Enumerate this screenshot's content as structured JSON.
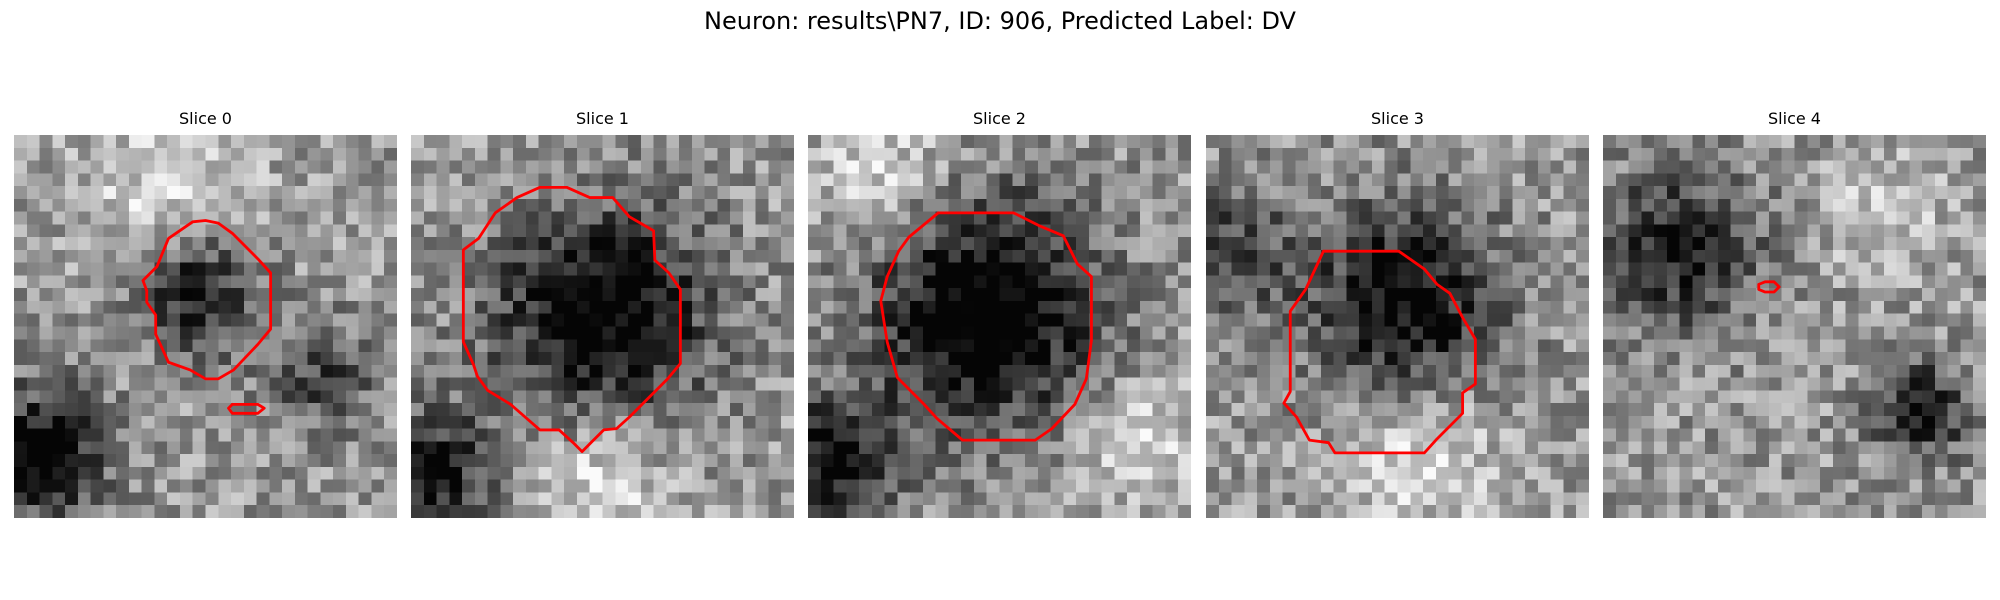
{
  "figure": {
    "title": "Neuron: results\\PN7, ID: 906, Predicted Label: DV"
  },
  "panels": [
    {
      "title": "Slice 0",
      "dark_blobs": [
        {
          "cx": 14.3,
          "cy": 12.3,
          "r": 4.3,
          "strength": 0.55
        },
        {
          "cx": 2.0,
          "cy": 25.0,
          "r": 4.8,
          "strength": 0.65
        },
        {
          "cx": 24.0,
          "cy": 19.0,
          "r": 4.0,
          "strength": 0.35
        }
      ],
      "bright_blobs": [
        {
          "cx": 12.0,
          "cy": 4.0,
          "r": 6.0,
          "strength": 0.25
        }
      ],
      "contours": [
        [
          [
            12.1,
            8.1
          ],
          [
            14.0,
            6.8
          ],
          [
            15.0,
            6.7
          ],
          [
            16.0,
            6.9
          ],
          [
            17.1,
            7.7
          ],
          [
            19.1,
            9.7
          ],
          [
            20.1,
            10.8
          ],
          [
            20.1,
            15.2
          ],
          [
            19.1,
            16.4
          ],
          [
            17.2,
            18.4
          ],
          [
            16.0,
            19.1
          ],
          [
            15.0,
            19.1
          ],
          [
            13.8,
            18.4
          ],
          [
            12.1,
            17.8
          ],
          [
            11.1,
            15.6
          ],
          [
            11.1,
            14.1
          ],
          [
            10.4,
            13.1
          ],
          [
            10.4,
            12.2
          ],
          [
            10.1,
            11.4
          ],
          [
            11.2,
            10.3
          ],
          [
            12.1,
            8.1
          ]
        ],
        [
          [
            17.1,
            21.1
          ],
          [
            19.1,
            21.1
          ],
          [
            19.6,
            21.4
          ],
          [
            19.1,
            21.8
          ],
          [
            17.1,
            21.8
          ],
          [
            16.8,
            21.4
          ],
          [
            17.1,
            21.1
          ]
        ]
      ]
    },
    {
      "title": "Slice 1",
      "dark_blobs": [
        {
          "cx": 15.0,
          "cy": 14.0,
          "r": 7.8,
          "strength": 0.7
        },
        {
          "cx": 1.0,
          "cy": 26.5,
          "r": 5.0,
          "strength": 0.55
        }
      ],
      "bright_blobs": [
        {
          "cx": 15.0,
          "cy": 27.0,
          "r": 5.0,
          "strength": 0.3
        }
      ],
      "contours": [
        [
          [
            10.1,
            4.1
          ],
          [
            12.2,
            4.1
          ],
          [
            14.0,
            4.9
          ],
          [
            15.8,
            4.9
          ],
          [
            17.1,
            6.4
          ],
          [
            19.0,
            7.5
          ],
          [
            19.1,
            9.8
          ],
          [
            20.2,
            10.8
          ],
          [
            21.1,
            12.1
          ],
          [
            21.1,
            17.9
          ],
          [
            20.1,
            19.1
          ],
          [
            19.1,
            20.1
          ],
          [
            18.1,
            21.1
          ],
          [
            17.1,
            22.1
          ],
          [
            16.1,
            23.0
          ],
          [
            15.1,
            23.1
          ],
          [
            14.1,
            24.1
          ],
          [
            13.4,
            24.8
          ],
          [
            12.7,
            24.1
          ],
          [
            11.6,
            23.1
          ],
          [
            10.1,
            23.1
          ],
          [
            7.8,
            21.1
          ],
          [
            6.0,
            20.0
          ],
          [
            5.2,
            18.9
          ],
          [
            4.9,
            18.0
          ],
          [
            4.1,
            16.2
          ],
          [
            4.1,
            9.0
          ],
          [
            5.3,
            8.1
          ],
          [
            6.6,
            6.1
          ],
          [
            8.3,
            4.9
          ],
          [
            10.1,
            4.1
          ]
        ]
      ]
    },
    {
      "title": "Slice 2",
      "dark_blobs": [
        {
          "cx": 14.0,
          "cy": 14.0,
          "r": 8.4,
          "strength": 0.75
        },
        {
          "cx": 2.0,
          "cy": 25.5,
          "r": 4.5,
          "strength": 0.6
        }
      ],
      "bright_blobs": [
        {
          "cx": 6.0,
          "cy": 3.0,
          "r": 5.0,
          "strength": 0.25
        },
        {
          "cx": 26.0,
          "cy": 24.0,
          "r": 5.0,
          "strength": 0.25
        }
      ],
      "contours": [
        [
          [
            10.2,
            6.1
          ],
          [
            16.1,
            6.1
          ],
          [
            18.1,
            7.1
          ],
          [
            20.0,
            7.9
          ],
          [
            21.1,
            10.1
          ],
          [
            22.2,
            11.1
          ],
          [
            22.2,
            16.1
          ],
          [
            21.8,
            19.1
          ],
          [
            20.9,
            21.1
          ],
          [
            19.1,
            23.0
          ],
          [
            17.8,
            23.9
          ],
          [
            12.1,
            23.9
          ],
          [
            10.1,
            22.2
          ],
          [
            9.0,
            21.0
          ],
          [
            7.0,
            19.0
          ],
          [
            6.2,
            16.2
          ],
          [
            5.7,
            13.0
          ],
          [
            6.2,
            11.1
          ],
          [
            7.1,
            9.1
          ],
          [
            7.9,
            8.0
          ],
          [
            10.2,
            6.1
          ]
        ]
      ]
    },
    {
      "title": "Slice 3",
      "dark_blobs": [
        {
          "cx": 15.5,
          "cy": 13.0,
          "r": 7.0,
          "strength": 0.6
        },
        {
          "cx": 2.0,
          "cy": 9.0,
          "r": 4.5,
          "strength": 0.35
        }
      ],
      "bright_blobs": [
        {
          "cx": 17.0,
          "cy": 25.0,
          "r": 5.0,
          "strength": 0.3
        }
      ],
      "contours": [
        [
          [
            9.2,
            9.1
          ],
          [
            15.1,
            9.1
          ],
          [
            17.1,
            10.5
          ],
          [
            18.1,
            11.7
          ],
          [
            19.1,
            12.4
          ],
          [
            20.1,
            14.3
          ],
          [
            21.1,
            16.0
          ],
          [
            21.1,
            19.5
          ],
          [
            20.1,
            20.2
          ],
          [
            20.1,
            21.8
          ],
          [
            18.1,
            23.8
          ],
          [
            17.1,
            24.9
          ],
          [
            10.1,
            24.9
          ],
          [
            9.6,
            24.1
          ],
          [
            8.1,
            23.9
          ],
          [
            7.1,
            22.1
          ],
          [
            6.1,
            21.0
          ],
          [
            6.6,
            20.1
          ],
          [
            6.6,
            13.8
          ],
          [
            7.8,
            12.1
          ],
          [
            9.2,
            9.1
          ]
        ]
      ]
    },
    {
      "title": "Slice 4",
      "dark_blobs": [
        {
          "cx": 6.0,
          "cy": 9.0,
          "r": 6.0,
          "strength": 0.5
        },
        {
          "cx": 25.0,
          "cy": 21.5,
          "r": 3.5,
          "strength": 0.55
        }
      ],
      "bright_blobs": [
        {
          "cx": 22.0,
          "cy": 6.0,
          "r": 4.5,
          "strength": 0.2
        }
      ],
      "contours": [
        [
          [
            12.2,
            11.7
          ],
          [
            12.7,
            11.5
          ],
          [
            13.4,
            11.5
          ],
          [
            13.8,
            11.9
          ],
          [
            13.4,
            12.3
          ],
          [
            12.7,
            12.3
          ],
          [
            12.2,
            12.1
          ],
          [
            12.2,
            11.7
          ]
        ]
      ]
    }
  ]
}
